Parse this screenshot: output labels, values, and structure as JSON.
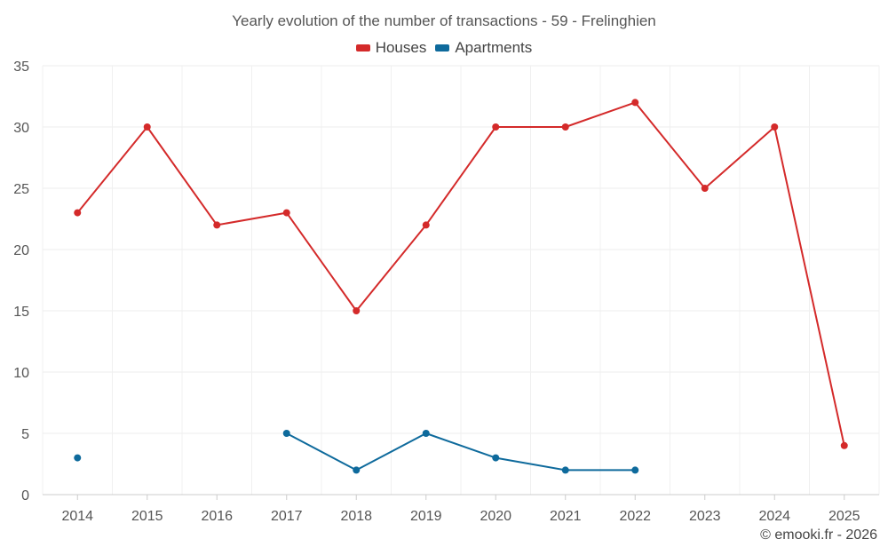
{
  "chart_data": {
    "type": "line",
    "title": "Yearly evolution of the number of transactions - 59 - Frelinghien",
    "categories": [
      "2014",
      "2015",
      "2016",
      "2017",
      "2018",
      "2019",
      "2020",
      "2021",
      "2022",
      "2023",
      "2024",
      "2025"
    ],
    "series": [
      {
        "name": "Houses",
        "color": "#d42a2a",
        "values": [
          23,
          30,
          22,
          23,
          15,
          22,
          30,
          30,
          32,
          25,
          30,
          4
        ]
      },
      {
        "name": "Apartments",
        "color": "#0e6a9c",
        "values": [
          3,
          null,
          null,
          5,
          2,
          5,
          3,
          2,
          2,
          null,
          null,
          null
        ]
      }
    ],
    "xlabel": "",
    "ylabel": "",
    "ylim": [
      0,
      35
    ],
    "yticks": [
      0,
      5,
      10,
      15,
      20,
      25,
      30,
      35
    ],
    "grid": true,
    "legend_position": "top-center"
  },
  "credit": "© emooki.fr - 2026"
}
